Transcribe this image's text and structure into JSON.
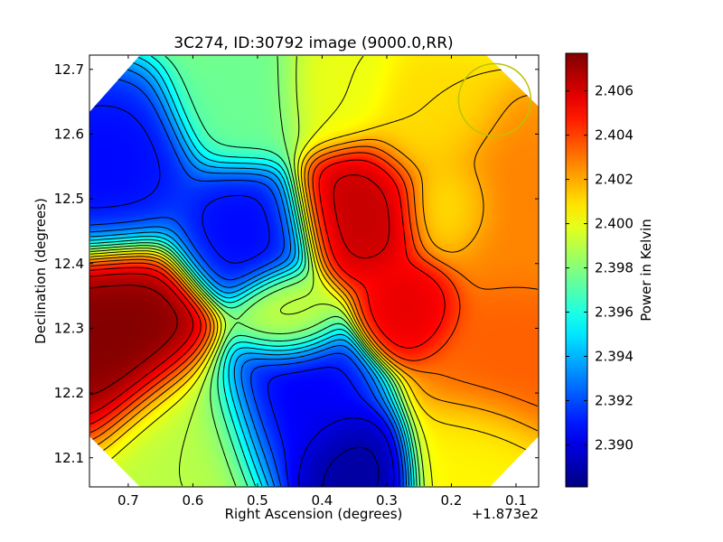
{
  "chart_data": {
    "type": "heatmap",
    "title": "3C274, ID:30792 image (9000.0,RR)",
    "xlabel": "Right Ascension (degrees)",
    "ylabel": "Declination (degrees)",
    "x_offset_label": "+1.873e2",
    "xlim": [
      0.76,
      0.065
    ],
    "ylim": [
      12.055,
      12.722
    ],
    "x_ticks": [
      {
        "value": 0.7,
        "label": "0.7"
      },
      {
        "value": 0.6,
        "label": "0.6"
      },
      {
        "value": 0.5,
        "label": "0.5"
      },
      {
        "value": 0.4,
        "label": "0.4"
      },
      {
        "value": 0.3,
        "label": "0.3"
      },
      {
        "value": 0.2,
        "label": "0.2"
      },
      {
        "value": 0.1,
        "label": "0.1"
      }
    ],
    "y_ticks": [
      {
        "value": 12.1,
        "label": "12.1"
      },
      {
        "value": 12.2,
        "label": "12.2"
      },
      {
        "value": 12.3,
        "label": "12.3"
      },
      {
        "value": 12.4,
        "label": "12.4"
      },
      {
        "value": 12.5,
        "label": "12.5"
      },
      {
        "value": 12.6,
        "label": "12.6"
      },
      {
        "value": 12.7,
        "label": "12.7"
      }
    ],
    "colorbar": {
      "label": "Power in Kelvin",
      "colormap": "jet",
      "range": [
        2.3881,
        2.4077
      ],
      "ticks": [
        {
          "value": 2.39,
          "label": "2.390"
        },
        {
          "value": 2.392,
          "label": "2.392"
        },
        {
          "value": 2.394,
          "label": "2.394"
        },
        {
          "value": 2.396,
          "label": "2.396"
        },
        {
          "value": 2.398,
          "label": "2.398"
        },
        {
          "value": 2.4,
          "label": "2.400"
        },
        {
          "value": 2.402,
          "label": "2.402"
        },
        {
          "value": 2.404,
          "label": "2.404"
        },
        {
          "value": 2.406,
          "label": "2.406"
        }
      ]
    },
    "field_features": [
      {
        "ra": 0.72,
        "dec": 12.29,
        "value": 2.4078,
        "width": 0.09
      },
      {
        "ra": 0.34,
        "dec": 12.485,
        "value": 2.4065,
        "width": 0.07
      },
      {
        "ra": 0.26,
        "dec": 12.33,
        "value": 2.4058,
        "width": 0.05
      },
      {
        "ra": 0.1,
        "dec": 12.25,
        "value": 2.4035,
        "width": 0.09
      },
      {
        "ra": 0.1,
        "dec": 12.5,
        "value": 2.4028,
        "width": 0.1
      },
      {
        "ra": 0.52,
        "dec": 12.45,
        "value": 2.3905,
        "width": 0.07
      },
      {
        "ra": 0.74,
        "dec": 12.55,
        "value": 2.3905,
        "width": 0.09
      },
      {
        "ra": 0.45,
        "dec": 12.18,
        "value": 2.3902,
        "width": 0.08
      },
      {
        "ra": 0.36,
        "dec": 12.08,
        "value": 2.3885,
        "width": 0.06
      },
      {
        "ra": 0.52,
        "dec": 12.65,
        "value": 2.3975,
        "width": 0.07
      },
      {
        "ra": 0.38,
        "dec": 12.66,
        "value": 2.4,
        "width": 0.06
      },
      {
        "ra": 0.46,
        "dec": 12.32,
        "value": 2.3995,
        "width": 0.05
      },
      {
        "ra": 0.6,
        "dec": 12.13,
        "value": 2.399,
        "width": 0.08
      },
      {
        "ra": 0.2,
        "dec": 12.49,
        "value": 2.4005,
        "width": 0.05
      },
      {
        "ra": 0.15,
        "dec": 12.1,
        "value": 2.4005,
        "width": 0.07
      },
      {
        "ra": 0.23,
        "dec": 12.62,
        "value": 2.401,
        "width": 0.07
      }
    ],
    "beam_circle": {
      "ra": 0.133,
      "dec": 12.653,
      "color": "#bcc400"
    },
    "contour_color": "#000000",
    "contour_step": 0.001,
    "grid": false,
    "legend": "none"
  }
}
